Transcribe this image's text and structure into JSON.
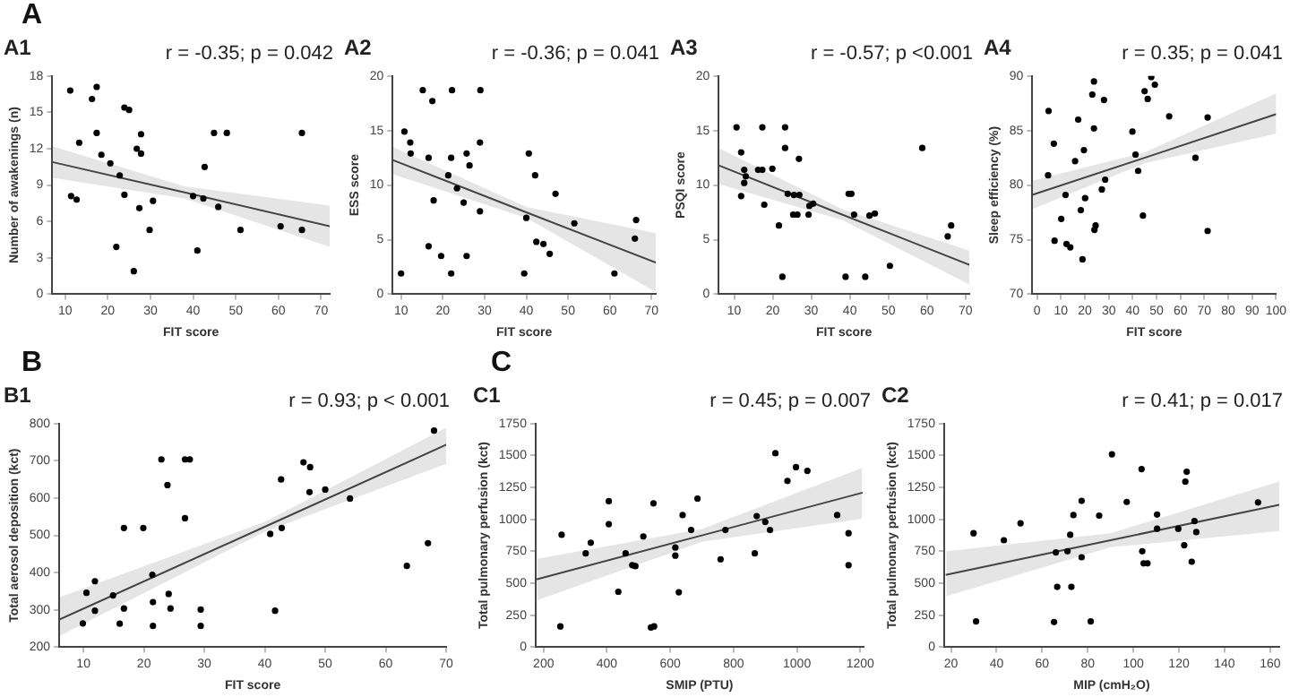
{
  "chart_data": [
    {
      "type": "scatter",
      "title": "A1",
      "xlabel": "FIT score",
      "ylabel": "Number of awakenings (n)",
      "xlim": [
        7,
        72
      ],
      "ylim": [
        0,
        18
      ],
      "xticks": [
        10,
        20,
        30,
        40,
        50,
        60,
        70
      ],
      "yticks": [
        0,
        3,
        6,
        9,
        12,
        15,
        18
      ],
      "marker": "circle",
      "annotations": [
        "A",
        "r = -0.35; p = 0.042"
      ],
      "series": [
        {
          "type": "scatter",
          "color": "#000000",
          "x": [
            11.2,
            17.4,
            16.3,
            23.9,
            25,
            13.3,
            17.4,
            18.5,
            20.6,
            26.8,
            27.8,
            27.8,
            22.8,
            11.4,
            12.7,
            23.9,
            27.4,
            30.6,
            29.8,
            22,
            26.1,
            40,
            42.7,
            42.4,
            44.9,
            47.9,
            45.9,
            51.1,
            41,
            60.5,
            65.5,
            65.5
          ],
          "values": [
            16.8,
            17.1,
            16.1,
            15.4,
            15.2,
            12.5,
            13.3,
            11.5,
            10.8,
            12,
            11.6,
            13.2,
            9.8,
            8.1,
            7.8,
            8.2,
            7.1,
            7.7,
            5.3,
            3.9,
            1.9,
            8.1,
            10.5,
            7.9,
            13.3,
            13.3,
            7.2,
            5.3,
            3.6,
            5.6,
            5.3,
            13.3
          ]
        },
        {
          "type": "line",
          "marker": "none",
          "color": "#444444",
          "x": [
            7,
            38,
            72
          ],
          "values": [
            10.9,
            8.4,
            5.6
          ],
          "lower": [
            9.6,
            7.9,
            3.9
          ],
          "upper": [
            12.2,
            8.9,
            7.3
          ]
        }
      ]
    },
    {
      "type": "scatter",
      "title": "A2",
      "xlabel": "FIT score",
      "ylabel": "ESS score",
      "xlim": [
        8,
        71
      ],
      "ylim": [
        0,
        20
      ],
      "xticks": [
        10,
        20,
        30,
        40,
        50,
        60,
        70
      ],
      "yticks": [
        0,
        5,
        10,
        15,
        20
      ],
      "marker": "circle",
      "annotations": [
        "r = -0.36; p = 0.041"
      ],
      "series": [
        {
          "type": "scatter",
          "color": "#000000",
          "x": [
            15.2,
            22.2,
            29,
            17.5,
            10.8,
            12.2,
            12.3,
            16.6,
            22,
            25.7,
            28.9,
            26.4,
            21.3,
            23.4,
            17.8,
            25,
            28.9,
            16.6,
            19.6,
            25.7,
            10,
            22,
            40.6,
            42.1,
            47,
            40,
            51.5,
            42.4,
            44.1,
            45.6,
            39.5,
            61.1,
            66.3,
            66
          ],
          "values": [
            18.7,
            18.7,
            18.7,
            17.7,
            14.9,
            13.9,
            12.9,
            12.5,
            12.5,
            12.9,
            13.9,
            11.8,
            10.9,
            9.7,
            8.6,
            8.4,
            7.6,
            4.4,
            3.5,
            3.5,
            1.9,
            1.9,
            12.9,
            10.9,
            9.2,
            7,
            6.5,
            4.8,
            4.6,
            3.7,
            1.9,
            1.9,
            6.8,
            5.1
          ]
        },
        {
          "type": "line",
          "marker": "none",
          "color": "#444444",
          "x": [
            8,
            40,
            71
          ],
          "values": [
            12.3,
            7.5,
            2.9
          ],
          "lower": [
            11.0,
            7.0,
            0.2
          ],
          "upper": [
            13.5,
            8.0,
            5.6
          ]
        }
      ]
    },
    {
      "type": "scatter",
      "title": "A3",
      "xlabel": "FIT score",
      "ylabel": "PSQI score",
      "xlim": [
        6,
        71
      ],
      "ylim": [
        0,
        20
      ],
      "xticks": [
        10,
        20,
        30,
        40,
        50,
        60,
        70
      ],
      "yticks": [
        0,
        5,
        10,
        15,
        20
      ],
      "marker": "circle",
      "annotations": [
        "r = -0.57; p <0.001"
      ],
      "series": [
        {
          "type": "scatter",
          "color": "#000000",
          "x": [
            10.6,
            17.3,
            23.2,
            11.8,
            23.2,
            26.8,
            12.6,
            16.2,
            17.3,
            19.9,
            13,
            12.6,
            11.8,
            17.8,
            23.9,
            25.5,
            26.9,
            25.3,
            26.4,
            29.3,
            29.5,
            30.5,
            21.6,
            22.5,
            39.7,
            40.4,
            41.1,
            45.1,
            46.5,
            50.4,
            38.9,
            44,
            58.8,
            66.3,
            65.4
          ],
          "values": [
            15.3,
            15.3,
            15.3,
            13,
            13.4,
            12.4,
            11.4,
            11.4,
            11.4,
            11.5,
            10.8,
            10.2,
            9,
            8.2,
            9.2,
            9.1,
            9.1,
            7.3,
            7.3,
            7.3,
            8.1,
            8.3,
            6.3,
            1.6,
            9.2,
            9.2,
            7.3,
            7.2,
            7.4,
            2.6,
            1.6,
            1.6,
            13.4,
            6.3,
            5.3
          ]
        },
        {
          "type": "line",
          "marker": "none",
          "color": "#444444",
          "x": [
            6,
            38,
            71
          ],
          "values": [
            11.8,
            7.3,
            2.7
          ],
          "lower": [
            10.1,
            6.8,
            0.9
          ],
          "upper": [
            13.4,
            7.8,
            4.0
          ]
        }
      ]
    },
    {
      "type": "scatter",
      "title": "A4",
      "xlabel": "FIT score",
      "ylabel": "Sleep efficiency (%)",
      "xlim": [
        -2,
        100
      ],
      "ylim": [
        70,
        90
      ],
      "xticks": [
        0,
        10,
        20,
        30,
        40,
        50,
        60,
        70,
        80,
        90,
        100
      ],
      "yticks": [
        70,
        75,
        80,
        85,
        90
      ],
      "marker": "circle",
      "annotations": [
        "r = 0.35; p = 0.041"
      ],
      "series": [
        {
          "type": "scatter",
          "color": "#000000",
          "x": [
            4.8,
            7,
            4.6,
            7.3,
            10.1,
            11.9,
            12.3,
            13.9,
            15.9,
            17.2,
            18.3,
            19,
            19.6,
            20.1,
            23.1,
            23.8,
            23.8,
            24,
            24.5,
            27.1,
            28,
            28.5,
            39.9,
            41.2,
            42.3,
            44.3,
            45,
            46.3,
            47.8,
            49.3,
            55.3,
            66.3,
            71.4,
            71.4
          ],
          "values": [
            86.8,
            83.8,
            80.9,
            74.9,
            76.9,
            79.1,
            74.6,
            74.3,
            82.2,
            86,
            77.7,
            73.2,
            83.2,
            78.8,
            88.3,
            89.5,
            85.2,
            75.9,
            76.3,
            79.6,
            87.8,
            80.5,
            84.9,
            82.8,
            81.3,
            77.2,
            88.6,
            87.9,
            89.9,
            89.2,
            86.3,
            82.5,
            86.2,
            75.8
          ]
        },
        {
          "type": "line",
          "marker": "none",
          "color": "#444444",
          "x": [
            -2,
            45,
            100
          ],
          "values": [
            79.1,
            82.5,
            86.5
          ],
          "lower": [
            77.8,
            82.0,
            84.7
          ],
          "upper": [
            80.4,
            83.0,
            88.4
          ]
        }
      ]
    },
    {
      "type": "scatter",
      "title": "B1",
      "xlabel": "FIT score",
      "ylabel": "Total aerosol deposition (kct)",
      "xlim": [
        6,
        70
      ],
      "ylim": [
        200,
        800
      ],
      "xticks": [
        10,
        20,
        30,
        40,
        50,
        60,
        70
      ],
      "yticks": [
        200,
        300,
        400,
        500,
        600,
        700,
        800
      ],
      "marker": "circle",
      "annotations": [
        "B",
        "r = 0.93; p < 0.001"
      ],
      "series": [
        {
          "type": "scatter",
          "color": "#000000",
          "x": [
            9.9,
            10.5,
            11.9,
            11.9,
            14.9,
            16,
            16.7,
            16.7,
            19.9,
            21.4,
            21.5,
            21.5,
            22.9,
            23.9,
            24.1,
            24.4,
            26.8,
            26.8,
            27.6,
            29.4,
            29.4,
            40.9,
            41.7,
            42.7,
            42.8,
            46.4,
            47.5,
            47.4,
            50,
            54.1,
            63.5,
            67,
            68
          ],
          "values": [
            264,
            346,
            377,
            298,
            339,
            263,
            520,
            304,
            520,
            394,
            321,
            257,
            704,
            635,
            343,
            304,
            546,
            704,
            704,
            301,
            257,
            504,
            298,
            650,
            520,
            696,
            683,
            616,
            623,
            599,
            418,
            479,
            781
          ]
        },
        {
          "type": "line",
          "marker": "none",
          "color": "#444444",
          "x": [
            6,
            40,
            70
          ],
          "values": [
            274,
            523,
            743
          ],
          "lower": [
            230,
            510,
            692
          ],
          "upper": [
            334,
            536,
            789
          ]
        }
      ]
    },
    {
      "type": "scatter",
      "title": "C1",
      "xlabel": "SMIP (PTU)",
      "ylabel": "Total pulmonary perfusion (kct)",
      "xlim": [
        175,
        1210
      ],
      "ylim": [
        0,
        1750
      ],
      "xticks": [
        200,
        400,
        600,
        800,
        1000,
        1200
      ],
      "yticks": [
        0,
        250,
        500,
        750,
        1000,
        1250,
        1500,
        1750
      ],
      "marker": "circle",
      "annotations": [
        "C",
        "r = 0.45; p = 0.007"
      ],
      "series": [
        {
          "type": "scatter",
          "color": "#000000",
          "x": [
            257,
            253,
            333,
            349,
            406,
            406,
            436,
            459,
            480,
            490,
            515,
            547,
            539,
            549,
            616,
            616,
            627,
            639,
            666,
            686,
            759,
            774,
            867,
            873,
            900,
            915,
            932,
            970,
            997,
            1033,
            1127,
            1163,
            1163
          ],
          "values": [
            880,
            163,
            734,
            817,
            1143,
            963,
            434,
            734,
            642,
            634,
            867,
            1126,
            154,
            163,
            780,
            717,
            430,
            1034,
            917,
            1163,
            688,
            917,
            734,
            1026,
            980,
            917,
            1518,
            1301,
            1409,
            1380,
            1034,
            892,
            642
          ]
        },
        {
          "type": "line",
          "marker": "none",
          "color": "#444444",
          "x": [
            180,
            700,
            1205
          ],
          "values": [
            532,
            875,
            1208
          ],
          "lower": [
            367,
            825,
            1005
          ],
          "upper": [
            692,
            925,
            1401
          ]
        }
      ]
    },
    {
      "type": "scatter",
      "title": "C2",
      "xlabel": "MIP (cmH₂O)",
      "ylabel": "Total pulmonary perfusion (kct)",
      "xlim": [
        17,
        164
      ],
      "ylim": [
        0,
        1750
      ],
      "xticks": [
        20,
        40,
        60,
        80,
        100,
        120,
        140,
        160
      ],
      "yticks": [
        0,
        250,
        500,
        750,
        1000,
        1250,
        1500,
        1750
      ],
      "marker": "circle",
      "annotations": [
        "r = 0.41; p = 0.017"
      ],
      "series": [
        {
          "type": "scatter",
          "color": "#000000",
          "x": [
            29.9,
            31,
            43.2,
            50.5,
            65.2,
            66,
            66.6,
            71.1,
            72.3,
            72.8,
            73.7,
            77.3,
            77.3,
            81.3,
            85,
            90.6,
            97.1,
            103.6,
            103.9,
            104.5,
            106.2,
            110.4,
            110.4,
            119.7,
            122.3,
            122.8,
            123.4,
            125.6,
            126.8,
            127.6,
            154.7
          ],
          "values": [
            892,
            202,
            837,
            970,
            197,
            742,
            472,
            751,
            880,
            472,
            1034,
            1145,
            704,
            202,
            1030,
            1510,
            1137,
            1394,
            751,
            656,
            656,
            1038,
            927,
            927,
            798,
            1296,
            1373,
            669,
            987,
            901,
            1133
          ]
        },
        {
          "type": "line",
          "marker": "none",
          "color": "#444444",
          "x": [
            18,
            90,
            164
          ],
          "values": [
            567,
            837,
            1115
          ],
          "lower": [
            399,
            782,
            909
          ],
          "upper": [
            751,
            892,
            1296
          ]
        }
      ]
    }
  ]
}
